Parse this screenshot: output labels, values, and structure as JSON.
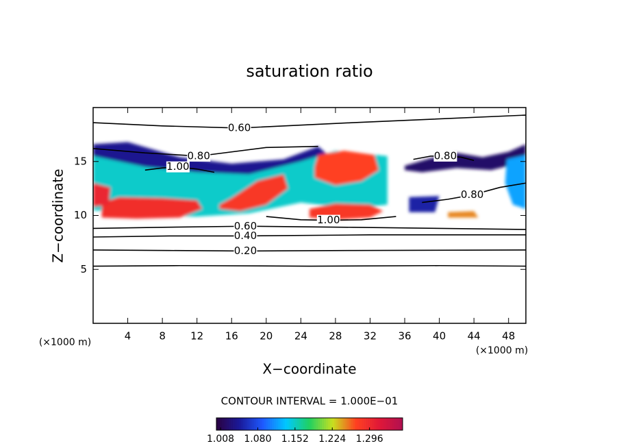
{
  "chart_data": {
    "type": "contour",
    "title": "saturation ratio",
    "x_label": "X−coordinate",
    "y_label": "Z−coordinate",
    "x_unit": "(×1000 m)",
    "y_unit": "(×1000 m)",
    "xlim": [
      0,
      50
    ],
    "ylim": [
      0,
      20
    ],
    "xticks": [
      4,
      8,
      12,
      16,
      20,
      24,
      28,
      32,
      36,
      40,
      44,
      48
    ],
    "yticks": [
      5,
      10,
      15
    ],
    "contour_interval": "CONTOUR INTERVAL = 1.000E−01",
    "colorbar": {
      "lim": [
        1.0,
        1.36
      ],
      "colormap": [
        "#2a0040",
        "#1a1a9a",
        "#1e5aff",
        "#00c8ff",
        "#20d060",
        "#c8e020",
        "#ff4020",
        "#e01838",
        "#b01050"
      ],
      "ticks": [
        {
          "value": 1.008,
          "label": "1.008"
        },
        {
          "value": 1.08,
          "label": "1.080"
        },
        {
          "value": 1.152,
          "label": "1.152"
        },
        {
          "value": 1.224,
          "label": "1.224"
        },
        {
          "value": 1.296,
          "label": "1.296"
        }
      ]
    },
    "regions": [
      {
        "value": 1.04,
        "x": [
          0,
          4,
          10,
          16,
          22,
          26,
          28,
          26,
          20,
          14,
          8,
          3,
          0
        ],
        "y": [
          16.6,
          16.8,
          15.4,
          14.8,
          15.2,
          16.4,
          15,
          13.6,
          12.6,
          13,
          13.6,
          14,
          14
        ]
      },
      {
        "value": 1.15,
        "x": [
          0,
          6,
          12,
          18,
          24,
          28,
          34,
          34,
          30,
          24,
          18,
          12,
          6,
          0
        ],
        "y": [
          15.5,
          14.5,
          14,
          13.8,
          15,
          16,
          15.5,
          11,
          10.6,
          11.2,
          10.2,
          9.9,
          10,
          10.5
        ]
      },
      {
        "value": 1.02,
        "x": [
          36,
          39,
          42,
          45,
          48,
          50,
          50,
          46,
          42,
          38,
          36
        ],
        "y": [
          14.6,
          15.3,
          15.8,
          15.4,
          15.9,
          16.6,
          15,
          14.2,
          14.4,
          14,
          14.2
        ]
      },
      {
        "value": 1.12,
        "x": [
          47.8,
          50,
          50,
          48.5,
          47.6
        ],
        "y": [
          15.2,
          15.6,
          10.6,
          11,
          13
        ]
      },
      {
        "value": 1.05,
        "x": [
          36.5,
          40,
          39.5,
          36.5
        ],
        "y": [
          11.7,
          11.8,
          10.3,
          10.3
        ]
      },
      {
        "value": 1.29,
        "x": [
          1,
          5,
          10,
          12.6,
          12,
          8,
          3,
          1
        ],
        "y": [
          9.8,
          9.7,
          9.8,
          10.6,
          11.4,
          11.6,
          11.7,
          11.2
        ]
      },
      {
        "value": 1.28,
        "x": [
          14.6,
          17,
          20,
          22.5,
          22,
          19,
          16,
          14.6
        ],
        "y": [
          10.6,
          10.4,
          11,
          12.5,
          13.8,
          13.2,
          11.6,
          11
        ]
      },
      {
        "value": 1.27,
        "x": [
          25.6,
          28,
          31,
          33,
          32.5,
          29,
          26,
          25.6
        ],
        "y": [
          13.5,
          12.8,
          13.2,
          14.2,
          15.6,
          16,
          15.6,
          14.5
        ]
      },
      {
        "value": 1.28,
        "x": [
          25,
          28,
          32,
          33.5,
          32,
          28,
          25
        ],
        "y": [
          9.8,
          9.6,
          9.8,
          10.4,
          11,
          11.1,
          10.6
        ]
      },
      {
        "value": 1.3,
        "x": [
          0,
          2,
          1.8,
          0
        ],
        "y": [
          13,
          12.6,
          11,
          10.8
        ]
      },
      {
        "value": 1.25,
        "x": [
          41,
          44,
          44.5,
          41
        ],
        "y": [
          10.3,
          10.4,
          9.8,
          9.8
        ]
      }
    ],
    "contours": [
      {
        "level": 0.1,
        "x": [
          0,
          10,
          25,
          40,
          50
        ],
        "y": [
          5.3,
          5.35,
          5.3,
          5.35,
          5.3
        ]
      },
      {
        "level": {
          "value": 0.2,
          "label": "0.20"
        },
        "x": [
          0,
          8.8,
          17.6,
          30,
          50
        ],
        "y": [
          6.8,
          6.75,
          6.7,
          6.75,
          6.8
        ]
      },
      {
        "level": {
          "value": 0.4,
          "label": "0.40"
        },
        "x": [
          0,
          8.8,
          17.6,
          32,
          50
        ],
        "y": [
          8,
          8.1,
          8.1,
          8.2,
          8.2
        ]
      },
      {
        "level": {
          "value": 0.6,
          "label": "0.60"
        },
        "x": [
          0,
          8,
          17.6,
          30,
          50
        ],
        "y": [
          8.8,
          8.9,
          9,
          8.9,
          8.7
        ]
      },
      {
        "level": {
          "value": 0.6,
          "label": "0.60"
        },
        "x": [
          0,
          8,
          16.9,
          30,
          50
        ],
        "y": [
          18.6,
          18.3,
          18.1,
          18.6,
          19.3
        ]
      },
      {
        "level": {
          "value": 0.8,
          "label": "0.80"
        },
        "x": [
          0,
          6,
          12.2,
          20,
          26
        ],
        "y": [
          16.2,
          15.8,
          15.5,
          16.3,
          16.4
        ]
      },
      {
        "level": {
          "value": 0.8,
          "label": "0.80"
        },
        "x": [
          38,
          41,
          43.8,
          47,
          50
        ],
        "y": [
          11.2,
          11.5,
          11.9,
          12.6,
          13
        ]
      },
      {
        "level": {
          "value": 0.8,
          "label": "0.80"
        },
        "x": [
          37,
          39,
          40.7,
          42.5,
          44
        ],
        "y": [
          15.2,
          15.5,
          15.5,
          15.4,
          15.1
        ]
      },
      {
        "level": {
          "value": 1.0,
          "label": "1.00"
        },
        "x": [
          20,
          24,
          27.2,
          31,
          35
        ],
        "y": [
          9.9,
          9.6,
          9.55,
          9.6,
          9.9
        ]
      },
      {
        "level": {
          "value": 1.0,
          "label": "1.00"
        },
        "x": [
          6,
          8,
          9.8,
          12,
          14
        ],
        "y": [
          14.2,
          14.4,
          14.5,
          14.3,
          14
        ]
      }
    ]
  }
}
